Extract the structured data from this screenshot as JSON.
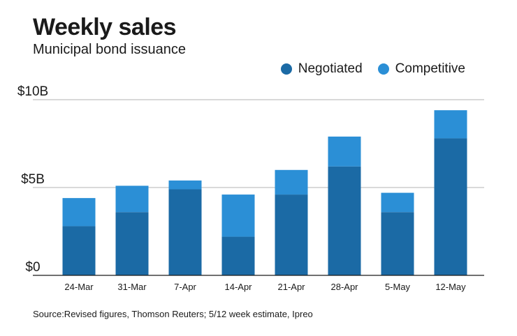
{
  "header": {
    "title": "Weekly sales",
    "subtitle": "Municipal bond issuance"
  },
  "footer": {
    "source": "Source:Revised figures, Thomson Reuters; 5/12 week estimate, Ipreo"
  },
  "colors": {
    "negotiated": "#1b6aa5",
    "competitive": "#2b8fd6",
    "grid": "#b3b3b3",
    "axis": "#1a1a1a"
  },
  "chart_data": {
    "type": "bar",
    "stacked": true,
    "categories": [
      "24-Mar",
      "31-Mar",
      "7-Apr",
      "14-Apr",
      "21-Apr",
      "28-Apr",
      "5-May",
      "12-May"
    ],
    "series": [
      {
        "name": "Negotiated",
        "values": [
          2.8,
          3.6,
          4.9,
          2.2,
          4.6,
          6.2,
          3.6,
          7.8
        ]
      },
      {
        "name": "Competitive",
        "values": [
          1.6,
          1.5,
          0.5,
          2.4,
          1.4,
          1.7,
          1.1,
          1.6
        ]
      }
    ],
    "yticks": [
      {
        "value": 0,
        "label": "$0"
      },
      {
        "value": 5,
        "label": "$5B"
      },
      {
        "value": 10,
        "label": "$10B"
      }
    ],
    "ylim": [
      0,
      10
    ],
    "xlabel": "",
    "ylabel": "",
    "legend_position": "top-right",
    "grid": true
  }
}
